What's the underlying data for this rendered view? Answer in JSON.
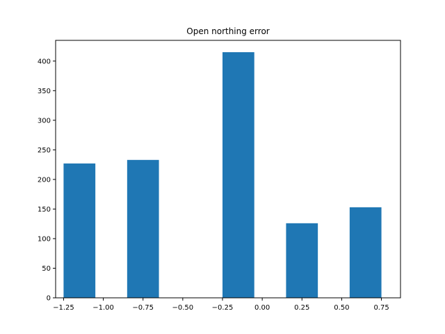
{
  "chart_data": {
    "type": "bar",
    "title": "Open northing error",
    "xlabel": "",
    "ylabel": "",
    "xlim": [
      -1.3,
      0.87
    ],
    "ylim": [
      0,
      435
    ],
    "bin_width": 0.2,
    "bars": [
      {
        "x_start": -1.25,
        "x_end": -1.05,
        "value": 227
      },
      {
        "x_start": -0.85,
        "x_end": -0.65,
        "value": 233
      },
      {
        "x_start": -0.25,
        "x_end": -0.05,
        "value": 415
      },
      {
        "x_start": 0.15,
        "x_end": 0.35,
        "value": 126
      },
      {
        "x_start": 0.55,
        "x_end": 0.75,
        "value": 153
      }
    ],
    "x_ticks": [
      -1.25,
      -1.0,
      -0.75,
      -0.5,
      -0.25,
      0.0,
      0.25,
      0.5,
      0.75
    ],
    "x_tick_labels": [
      "−1.25",
      "−1.00",
      "−0.75",
      "−0.50",
      "−0.25",
      "0.00",
      "0.25",
      "0.50",
      "0.75"
    ],
    "y_ticks": [
      0,
      50,
      100,
      150,
      200,
      250,
      300,
      350,
      400
    ],
    "y_tick_labels": [
      "0",
      "50",
      "100",
      "150",
      "200",
      "250",
      "300",
      "350",
      "400"
    ],
    "grid": false,
    "bar_color": "#1f77b4"
  }
}
